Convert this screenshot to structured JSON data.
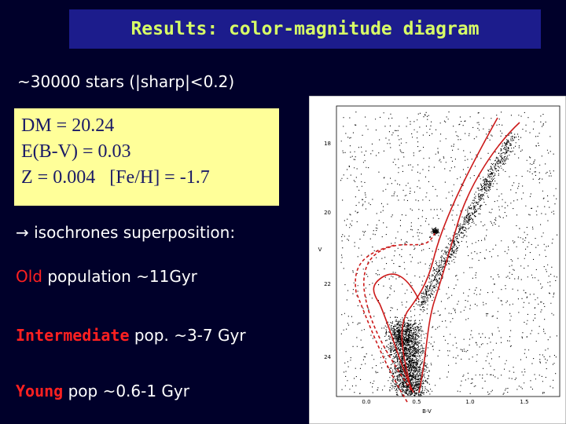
{
  "title": "Results: color-magnitude diagram",
  "subtitle": "~30000 stars (|sharp|<0.2)",
  "parameters": [
    "DM = 20.24",
    "E(B-V) = 0.03",
    "Z = 0.004   [Fe/H] = -1.7"
  ],
  "intro": "→ isochrones superposition:",
  "populations": [
    {
      "name": "Old",
      "text": "population ~11Gyr"
    },
    {
      "name": "Intermediate",
      "text": "pop. ~3-7 Gyr"
    },
    {
      "name": "Young",
      "text": "pop ~0.6-1 Gyr"
    }
  ],
  "figure": {
    "y_label": "V",
    "x_label": "B-V",
    "y_tick_labels": [
      "18",
      "20",
      "22",
      "24"
    ],
    "x_tick_labels": [
      "0.0",
      "0.5",
      "1.0",
      "1.5"
    ]
  }
}
